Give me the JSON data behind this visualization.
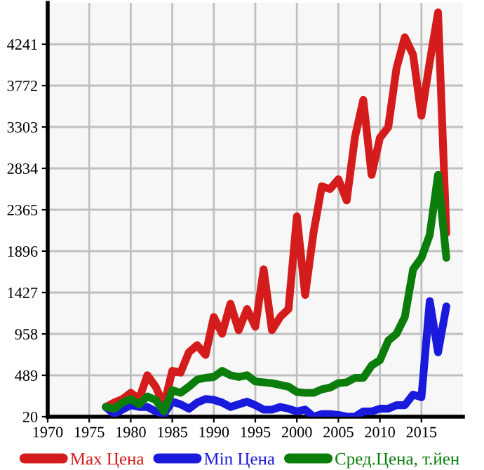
{
  "chart_data": {
    "type": "line",
    "x": [
      1977,
      1978,
      1979,
      1980,
      1981,
      1982,
      1983,
      1984,
      1985,
      1986,
      1987,
      1988,
      1989,
      1990,
      1991,
      1992,
      1993,
      1994,
      1995,
      1996,
      1997,
      1998,
      1999,
      2000,
      2001,
      2002,
      2003,
      2004,
      2005,
      2006,
      2007,
      2008,
      2009,
      2010,
      2011,
      2012,
      2013,
      2014,
      2015,
      2016,
      2017,
      2018
    ],
    "series": [
      {
        "name": "Max Цена",
        "color": "#d41c1c",
        "values": [
          130,
          180,
          220,
          290,
          220,
          490,
          360,
          150,
          540,
          520,
          750,
          830,
          720,
          1150,
          960,
          1300,
          1000,
          1240,
          1040,
          1690,
          1000,
          1150,
          1240,
          2290,
          1400,
          2100,
          2630,
          2600,
          2710,
          2470,
          3190,
          3610,
          2760,
          3180,
          3300,
          3970,
          4320,
          4120,
          3430,
          4040,
          4600,
          2100
        ]
      },
      {
        "name": "Min Цена",
        "color": "#1a1adc",
        "values": [
          130,
          50,
          100,
          150,
          130,
          130,
          80,
          50,
          190,
          160,
          110,
          180,
          220,
          210,
          180,
          130,
          160,
          190,
          150,
          100,
          100,
          130,
          110,
          80,
          100,
          20,
          50,
          50,
          40,
          20,
          20,
          80,
          80,
          110,
          110,
          150,
          150,
          270,
          240,
          1330,
          750,
          1270
        ]
      },
      {
        "name": "Сред.Цена, т.йен",
        "color": "#0a7d0a",
        "values": [
          130,
          110,
          180,
          220,
          160,
          250,
          210,
          80,
          320,
          290,
          360,
          440,
          460,
          470,
          540,
          490,
          470,
          490,
          420,
          410,
          400,
          380,
          360,
          300,
          290,
          290,
          330,
          350,
          400,
          410,
          460,
          460,
          600,
          660,
          880,
          960,
          1150,
          1690,
          1820,
          2080,
          2760,
          1820
        ]
      }
    ],
    "xlim": [
      1970,
      2020
    ],
    "xticks": [
      1970,
      1975,
      1980,
      1985,
      1990,
      1995,
      2000,
      2005,
      2010,
      2015
    ],
    "ylim": [
      20,
      4710
    ],
    "yticks": [
      20,
      489,
      958,
      1427,
      1896,
      2365,
      2834,
      3303,
      3772,
      4241
    ],
    "grid": true,
    "legend": "bottom",
    "marker": "none",
    "line_style": "solid"
  }
}
